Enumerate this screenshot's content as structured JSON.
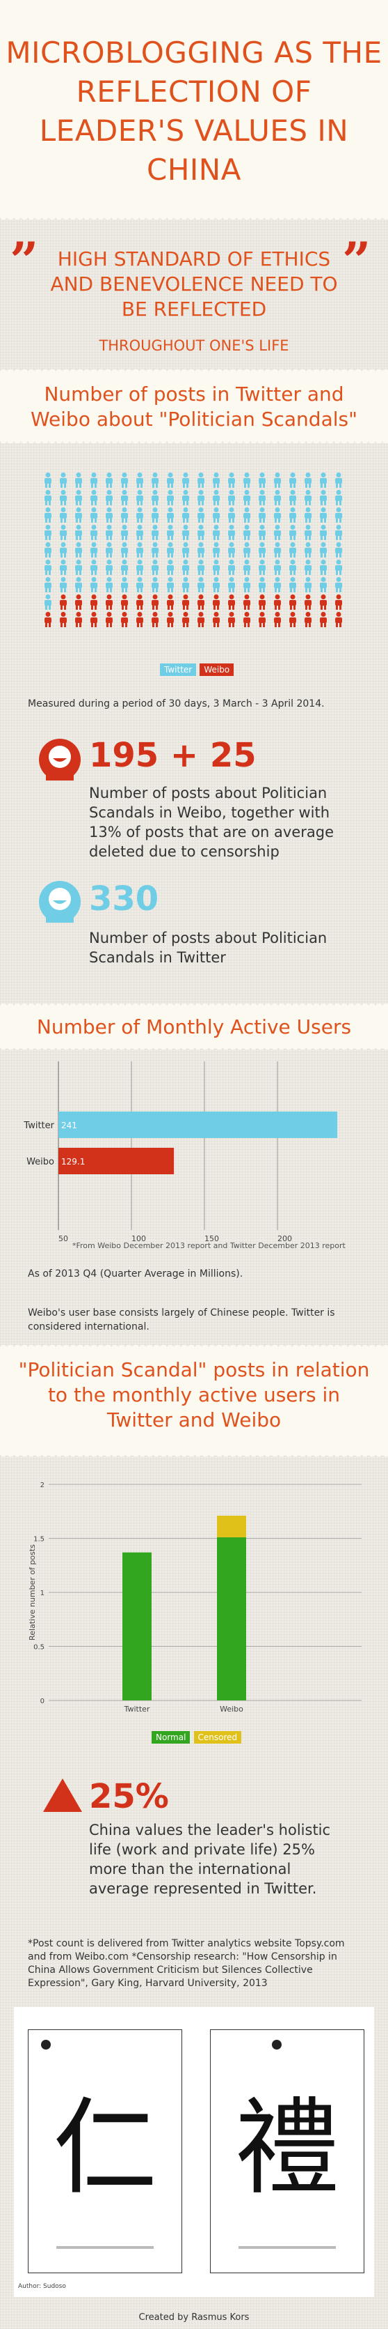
{
  "title": "MICROBLOGGING AS THE REFLECTION OF LEADER'S VALUES IN CHINA",
  "quote": {
    "main": "HIGH STANDARD OF ETHICS AND BENEVOLENCE NEED TO BE REFLECTED",
    "sub": "THROUGHOUT ONE'S LIFE",
    "mark": "”"
  },
  "section_posts": {
    "title": "Number of posts in Twitter and Weibo about \"Politician Scandals\"",
    "legend": [
      "Twitter",
      "Weibo"
    ],
    "period_note": "Measured during a period of 30 days, 3 March - 3 April 2014.",
    "weibo_stat": {
      "number": "195 + 25",
      "text": "Number of posts about Politician Scandals in Weibo, together with 13% of posts that are on average deleted due to censorship"
    },
    "twitter_stat": {
      "number": "330",
      "text": "Number of posts about Politician Scandals in Twitter"
    }
  },
  "section_users": {
    "title": "Number of Monthly Active Users",
    "source_note": "*From Weibo December 2013 report and Twitter December 2013 report",
    "asof_note": "As of 2013 Q4 (Quarter Average in Millions).",
    "base_note": "Weibo's user base consists largely of Chinese people. Twitter is considered international."
  },
  "section_ratio": {
    "title": "\"Politician Scandal\" posts in relation to the monthly active users in Twitter and Weibo",
    "legend": [
      "Normal",
      "Censored"
    ],
    "stat": {
      "number": "25%",
      "text": "China values the leader's holistic life (work and private life) 25% more than the international average represented in Twitter."
    }
  },
  "notes": {
    "text": "*Post count is delivered from Twitter analytics website Topsy.com and from Weibo.com    *Censorship research: \"How Censorship in China Allows Government Criticism but Silences Collective Expression\", Gary King, Harvard University, 2013"
  },
  "posters": {
    "left_char": "仁",
    "right_char": "禮",
    "author": "Author: Sudoso"
  },
  "footer": "Created by Rasmus Kors",
  "colors": {
    "twitter": "#6fcde6",
    "weibo": "#d3321a",
    "orange": "#e0521d",
    "normal": "#33a620",
    "censored": "#e0c11a"
  },
  "chart_data": [
    {
      "type": "bar",
      "orientation": "horizontal",
      "categories": [
        "Twitter",
        "Weibo"
      ],
      "values": [
        241,
        129.1
      ],
      "data_labels": [
        "241",
        "129.1"
      ],
      "xlim": [
        50,
        250
      ],
      "x_ticks": [
        "50",
        "100",
        "150",
        "200"
      ],
      "grid": true
    },
    {
      "type": "bar",
      "stacked": true,
      "categories": [
        "Twitter",
        "Weibo"
      ],
      "ylabel": "Relative number of posts",
      "ylim": [
        0,
        2
      ],
      "y_ticks": [
        "0",
        "0.5",
        "1",
        "1.5",
        "2"
      ],
      "series": [
        {
          "name": "Normal",
          "values": [
            1.37,
            1.51
          ]
        },
        {
          "name": "Censored",
          "values": [
            0,
            0.2
          ]
        }
      ],
      "grid": true
    }
  ]
}
